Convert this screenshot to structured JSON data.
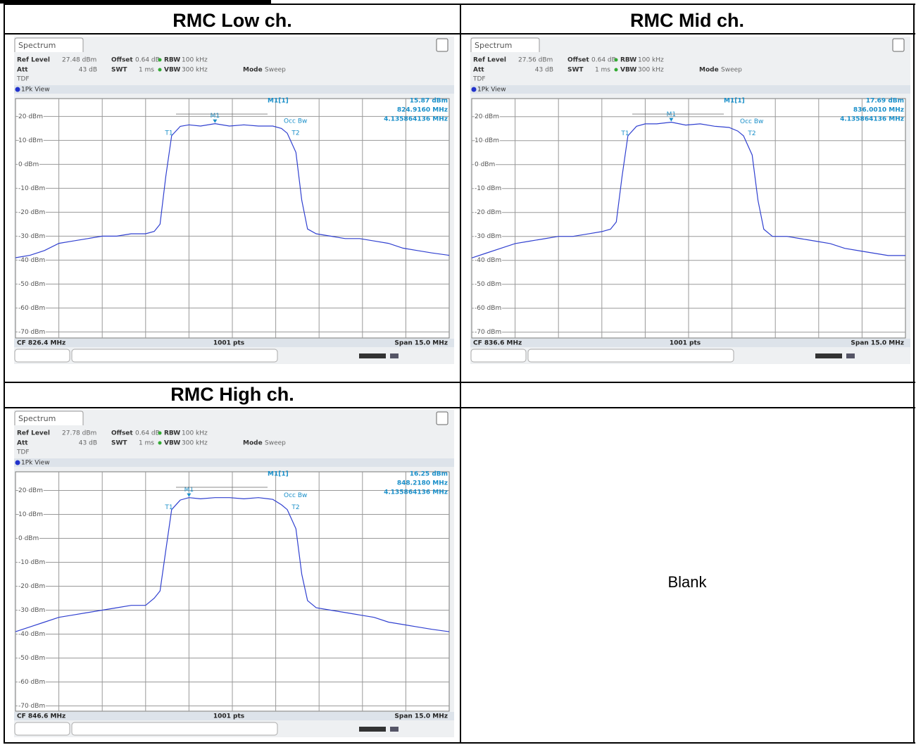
{
  "chart_data": [
    {
      "type": "line",
      "title": "RMC Low ch.",
      "window": "Spectrum",
      "settings": {
        "ref_level_label": "Ref Level",
        "ref_level": "27.48 dBm",
        "offset_label": "Offset",
        "offset": "0.64 dB",
        "rbw_label": "RBW",
        "rbw": "100 kHz",
        "att_label": "Att",
        "att": "43 dB",
        "swt_label": "SWT",
        "swt": "1 ms",
        "vbw_label": "VBW",
        "vbw": "300 kHz",
        "mode_label": "Mode",
        "mode": "Sweep",
        "tdf": "TDF"
      },
      "view": "1Pk View",
      "marker_readout": {
        "name": "M1[1]",
        "level": "15.87 dBm",
        "freq": "824.9160 MHz",
        "occ_bw": "4.135864136 MHz"
      },
      "marker_labels": {
        "m1": "M1",
        "t1": "T1",
        "t2": "T2",
        "occ": "Occ Bw"
      },
      "footer": {
        "center": "CF 826.4 MHz",
        "points": "1001 pts",
        "span": "Span 15.0 MHz"
      },
      "xlim": [
        818.9,
        833.9
      ],
      "ylim": [
        -72.52,
        27.48
      ],
      "yticks": [
        {
          "value": 20,
          "label": "20 dBm"
        },
        {
          "value": 10,
          "label": "10 dBm"
        },
        {
          "value": 0,
          "label": "0 dBm"
        },
        {
          "value": -10,
          "label": "-10 dBm"
        },
        {
          "value": -20,
          "label": "-20 dBm"
        },
        {
          "value": -30,
          "label": "-30 dBm"
        },
        {
          "value": -40,
          "label": "-40 dBm"
        },
        {
          "value": -50,
          "label": "-50 dBm"
        },
        {
          "value": -60,
          "label": "-60 dBm"
        },
        {
          "value": -70,
          "label": "-70 dBm"
        }
      ],
      "grid": true,
      "color": "#3040d0",
      "x": [
        818.9,
        819.4,
        819.9,
        820.4,
        820.9,
        821.4,
        821.9,
        822.4,
        822.9,
        823.4,
        823.7,
        823.9,
        824.1,
        824.3,
        824.6,
        824.9,
        825.3,
        825.8,
        826.3,
        826.8,
        827.3,
        827.8,
        828.1,
        828.3,
        828.6,
        828.8,
        829.0,
        829.3,
        829.8,
        830.3,
        830.8,
        831.3,
        831.8,
        832.3,
        832.8,
        833.3,
        833.9
      ],
      "values": [
        -39,
        -38,
        -36,
        -33,
        -32,
        -31,
        -30,
        -30,
        -29,
        -29,
        -28,
        -25,
        -5,
        12,
        15.9,
        16.5,
        16,
        17,
        16,
        16.5,
        16,
        16,
        15,
        13,
        5,
        -15,
        -27,
        -29,
        -30,
        -31,
        -31,
        -32,
        -33,
        -35,
        -36,
        -37,
        -38
      ]
    },
    {
      "type": "line",
      "title": "RMC Mid ch.",
      "window": "Spectrum",
      "settings": {
        "ref_level_label": "Ref Level",
        "ref_level": "27.56 dBm",
        "offset_label": "Offset",
        "offset": "0.64 dB",
        "rbw_label": "RBW",
        "rbw": "100 kHz",
        "att_label": "Att",
        "att": "43 dB",
        "swt_label": "SWT",
        "swt": "1 ms",
        "vbw_label": "VBW",
        "vbw": "300 kHz",
        "mode_label": "Mode",
        "mode": "Sweep",
        "tdf": "TDF"
      },
      "view": "1Pk View",
      "marker_readout": {
        "name": "M1[1]",
        "level": "17.69 dBm",
        "freq": "836.0010 MHz",
        "occ_bw": "4.135864136 MHz"
      },
      "marker_labels": {
        "m1": "M1",
        "t1": "T1",
        "t2": "T2",
        "occ": "Occ Bw"
      },
      "footer": {
        "center": "CF 836.6 MHz",
        "points": "1001 pts",
        "span": "Span 15.0 MHz"
      },
      "xlim": [
        829.1,
        844.1
      ],
      "ylim": [
        -72.44,
        27.56
      ],
      "yticks": [
        {
          "value": 20,
          "label": "20 dBm"
        },
        {
          "value": 10,
          "label": "10 dBm"
        },
        {
          "value": 0,
          "label": "0 dBm"
        },
        {
          "value": -10,
          "label": "-10 dBm"
        },
        {
          "value": -20,
          "label": "-20 dBm"
        },
        {
          "value": -30,
          "label": "-30 dBm"
        },
        {
          "value": -40,
          "label": "-40 dBm"
        },
        {
          "value": -50,
          "label": "-50 dBm"
        },
        {
          "value": -60,
          "label": "-60 dBm"
        },
        {
          "value": -70,
          "label": "-70 dBm"
        }
      ],
      "grid": true,
      "color": "#3040d0",
      "x": [
        829.1,
        829.6,
        830.1,
        830.6,
        831.1,
        831.6,
        832.1,
        832.6,
        833.1,
        833.6,
        833.9,
        834.1,
        834.3,
        834.5,
        834.8,
        835.1,
        835.5,
        836.0,
        836.5,
        837.0,
        837.5,
        838.0,
        838.3,
        838.5,
        838.8,
        839.0,
        839.2,
        839.5,
        840.0,
        840.5,
        841.0,
        841.5,
        842.0,
        842.5,
        843.0,
        843.5,
        844.1
      ],
      "values": [
        -39,
        -37,
        -35,
        -33,
        -32,
        -31,
        -30,
        -30,
        -29,
        -28,
        -27,
        -24,
        -5,
        12,
        16,
        17,
        17,
        17.7,
        16.5,
        17,
        16,
        15.5,
        14,
        12,
        4,
        -15,
        -27,
        -30,
        -30,
        -31,
        -32,
        -33,
        -35,
        -36,
        -37,
        -38,
        -38
      ]
    },
    {
      "type": "line",
      "title": "RMC High ch.",
      "window": "Spectrum",
      "settings": {
        "ref_level_label": "Ref Level",
        "ref_level": "27.78 dBm",
        "offset_label": "Offset",
        "offset": "0.64 dB",
        "rbw_label": "RBW",
        "rbw": "100 kHz",
        "att_label": "Att",
        "att": "43 dB",
        "swt_label": "SWT",
        "swt": "1 ms",
        "vbw_label": "VBW",
        "vbw": "300 kHz",
        "mode_label": "Mode",
        "mode": "Sweep",
        "tdf": "TDF"
      },
      "view": "1Pk View",
      "marker_readout": {
        "name": "M1[1]",
        "level": "16.25 dBm",
        "freq": "848.2180 MHz",
        "occ_bw": "4.135864136 MHz"
      },
      "marker_labels": {
        "m1": "M1",
        "t1": "T1",
        "t2": "T2",
        "occ": "Occ Bw"
      },
      "footer": {
        "center": "CF 846.6 MHz",
        "points": "1001 pts",
        "span": "Span 15.0 MHz"
      },
      "xlim": [
        839.1,
        854.1
      ],
      "ylim": [
        -72.22,
        27.78
      ],
      "yticks": [
        {
          "value": 20,
          "label": "20 dBm"
        },
        {
          "value": 10,
          "label": "10 dBm"
        },
        {
          "value": 0,
          "label": "0 dBm"
        },
        {
          "value": -10,
          "label": "-10 dBm"
        },
        {
          "value": -20,
          "label": "-20 dBm"
        },
        {
          "value": -30,
          "label": "-30 dBm"
        },
        {
          "value": -40,
          "label": "-40 dBm"
        },
        {
          "value": -50,
          "label": "-50 dBm"
        },
        {
          "value": -60,
          "label": "-60 dBm"
        },
        {
          "value": -70,
          "label": "-70 dBm"
        }
      ],
      "grid": true,
      "color": "#3040d0",
      "x": [
        839.1,
        839.6,
        840.1,
        840.6,
        841.1,
        841.6,
        842.1,
        842.6,
        843.1,
        843.6,
        843.9,
        844.1,
        844.3,
        844.5,
        844.8,
        845.1,
        845.5,
        846.0,
        846.5,
        847.0,
        847.5,
        848.0,
        848.3,
        848.5,
        848.8,
        849.0,
        849.2,
        849.5,
        850.0,
        850.5,
        851.0,
        851.5,
        852.0,
        852.5,
        853.0,
        853.5,
        854.1
      ],
      "values": [
        -39,
        -37,
        -35,
        -33,
        -32,
        -31,
        -30,
        -29,
        -28,
        -28,
        -25,
        -22,
        -5,
        12,
        16,
        17,
        16.5,
        17,
        17,
        16.5,
        17,
        16.25,
        14,
        12,
        4,
        -15,
        -26,
        -29,
        -30,
        -31,
        -32,
        -33,
        -35,
        -36,
        -37,
        -38,
        -39
      ]
    }
  ],
  "blank_cell": "Blank"
}
